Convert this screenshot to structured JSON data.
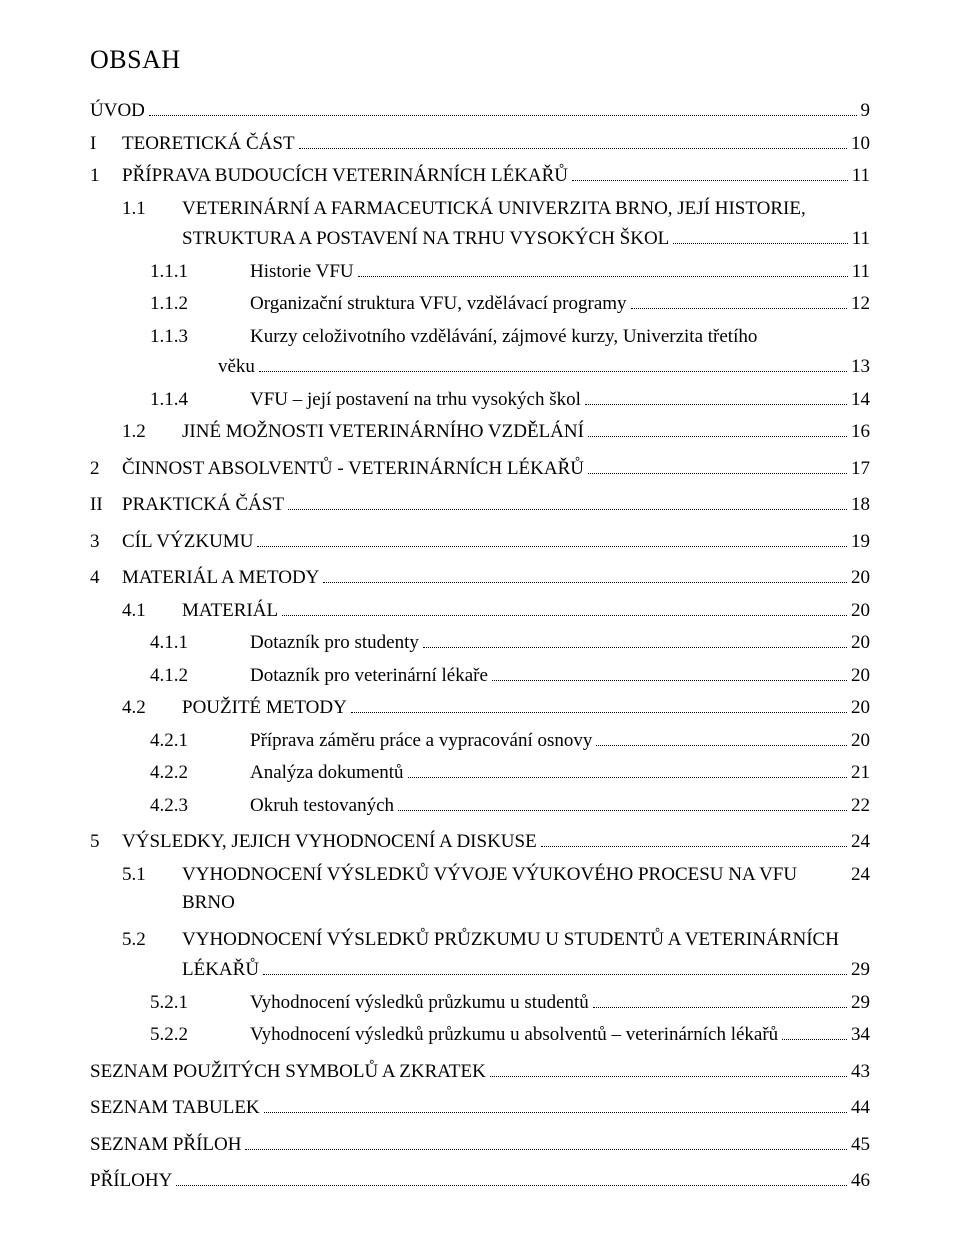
{
  "title": "OBSAH",
  "entries": [
    {
      "level": 0,
      "num": "",
      "text": "ÚVOD",
      "page": "9",
      "style": "plain",
      "nolabel": true
    },
    {
      "level": 0,
      "num": "I",
      "text": "TEORETICKÁ ČÁST",
      "page": "10",
      "style": "plain"
    },
    {
      "level": 0,
      "num": "1",
      "text": "PŘÍPRAVA BUDOUCÍCH VETERINÁRNÍCH LÉKAŘŮ",
      "page": "11",
      "style": "plain"
    },
    {
      "level": 1,
      "num": "1.1",
      "text": "VETERINÁRNÍ A FARMACEUTICKÁ UNIVERZITA BRNO, JEJÍ HISTORIE,",
      "style": "smallcaps",
      "wrap": true
    },
    {
      "level": "wrap",
      "text": "STRUKTURA A POSTAVENÍ NA TRHU VYSOKÝCH ŠKOL",
      "page": "11",
      "style": "smallcaps"
    },
    {
      "level": 2,
      "num": "1.1.1",
      "text": "Historie VFU",
      "page": "11",
      "style": "plain"
    },
    {
      "level": 2,
      "num": "1.1.2",
      "text": "Organizační struktura VFU, vzdělávací programy",
      "page": "12",
      "style": "plain"
    },
    {
      "level": 2,
      "num": "1.1.3",
      "text": "Kurzy celoživotního vzdělávání, zájmové kurzy, Univerzita třetího",
      "style": "plain",
      "wrap": true
    },
    {
      "level": "wrap2",
      "text": "věku",
      "page": "13",
      "style": "plain"
    },
    {
      "level": 2,
      "num": "1.1.4",
      "text": "VFU – její postavení na trhu vysokých škol",
      "page": "14",
      "style": "plain"
    },
    {
      "level": 1,
      "num": "1.2",
      "text": "JINÉ MOŽNOSTI VETERINÁRNÍHO VZDĚLÁNÍ",
      "page": "16",
      "style": "smallcaps"
    },
    {
      "level": 0,
      "num": "2",
      "text": "ČINNOST ABSOLVENTŮ - VETERINÁRNÍCH LÉKAŘŮ",
      "page": "17",
      "style": "plain",
      "gap": true
    },
    {
      "level": 0,
      "num": "II",
      "text": "PRAKTICKÁ ČÁST",
      "page": "18",
      "style": "plain",
      "gap": true
    },
    {
      "level": 0,
      "num": "3",
      "text": "CÍL VÝZKUMU",
      "page": "19",
      "style": "plain",
      "gap": true
    },
    {
      "level": 0,
      "num": "4",
      "text": "MATERIÁL A METODY",
      "page": "20",
      "style": "plain",
      "gap": true
    },
    {
      "level": 1,
      "num": "4.1",
      "text": "MATERIÁL",
      "page": "20",
      "style": "smallcaps"
    },
    {
      "level": 2,
      "num": "4.1.1",
      "text": "Dotazník pro studenty",
      "page": "20",
      "style": "plain"
    },
    {
      "level": 2,
      "num": "4.1.2",
      "text": "Dotazník pro veterinární lékaře",
      "page": "20",
      "style": "plain"
    },
    {
      "level": 1,
      "num": "4.2",
      "text": "POUŽITÉ METODY",
      "page": "20",
      "style": "smallcaps"
    },
    {
      "level": 2,
      "num": "4.2.1",
      "text": "Příprava záměru práce a vypracování osnovy",
      "page": "20",
      "style": "plain"
    },
    {
      "level": 2,
      "num": "4.2.2",
      "text": "Analýza dokumentů",
      "page": "21",
      "style": "plain"
    },
    {
      "level": 2,
      "num": "4.2.3",
      "text": "Okruh testovaných",
      "page": "22",
      "style": "plain"
    },
    {
      "level": 0,
      "num": "5",
      "text": "VÝSLEDKY, JEJICH VYHODNOCENÍ A DISKUSE",
      "page": "24",
      "style": "plain",
      "gap": true
    },
    {
      "level": 1,
      "num": "5.1",
      "text": "VYHODNOCENÍ VÝSLEDKŮ  VÝVOJE VÝUKOVÉHO PROCESU NA VFU BRNO",
      "page": "24",
      "style": "smallcaps"
    },
    {
      "level": 1,
      "num": "5.2",
      "text": "VYHODNOCENÍ VÝSLEDKŮ PRŮZKUMU U STUDENTŮ A VETERINÁRNÍCH",
      "style": "smallcaps",
      "wrap": true,
      "gap": true
    },
    {
      "level": "wrap",
      "text": "LÉKAŘŮ",
      "page": "29",
      "style": "smallcaps"
    },
    {
      "level": 2,
      "num": "5.2.1",
      "text": "Vyhodnocení výsledků průzkumu u studentů",
      "page": "29",
      "style": "plain"
    },
    {
      "level": 2,
      "num": "5.2.2",
      "text": "Vyhodnocení výsledků průzkumu u absolventů – veterinárních lékařů",
      "page": "34",
      "style": "plain"
    },
    {
      "level": 0,
      "num": "",
      "text": "SEZNAM POUŽITÝCH SYMBOLŮ A ZKRATEK",
      "page": "43",
      "style": "plain",
      "nolabel": true,
      "gap": true
    },
    {
      "level": 0,
      "num": "",
      "text": "SEZNAM TABULEK",
      "page": "44",
      "style": "plain",
      "nolabel": true,
      "gap": true
    },
    {
      "level": 0,
      "num": "",
      "text": "SEZNAM PŘÍLOH",
      "page": "45",
      "style": "plain",
      "nolabel": true,
      "gap": true
    },
    {
      "level": 0,
      "num": "",
      "text": "PŘÍLOHY",
      "page": "46",
      "style": "plain",
      "nolabel": true,
      "gap": true
    }
  ]
}
